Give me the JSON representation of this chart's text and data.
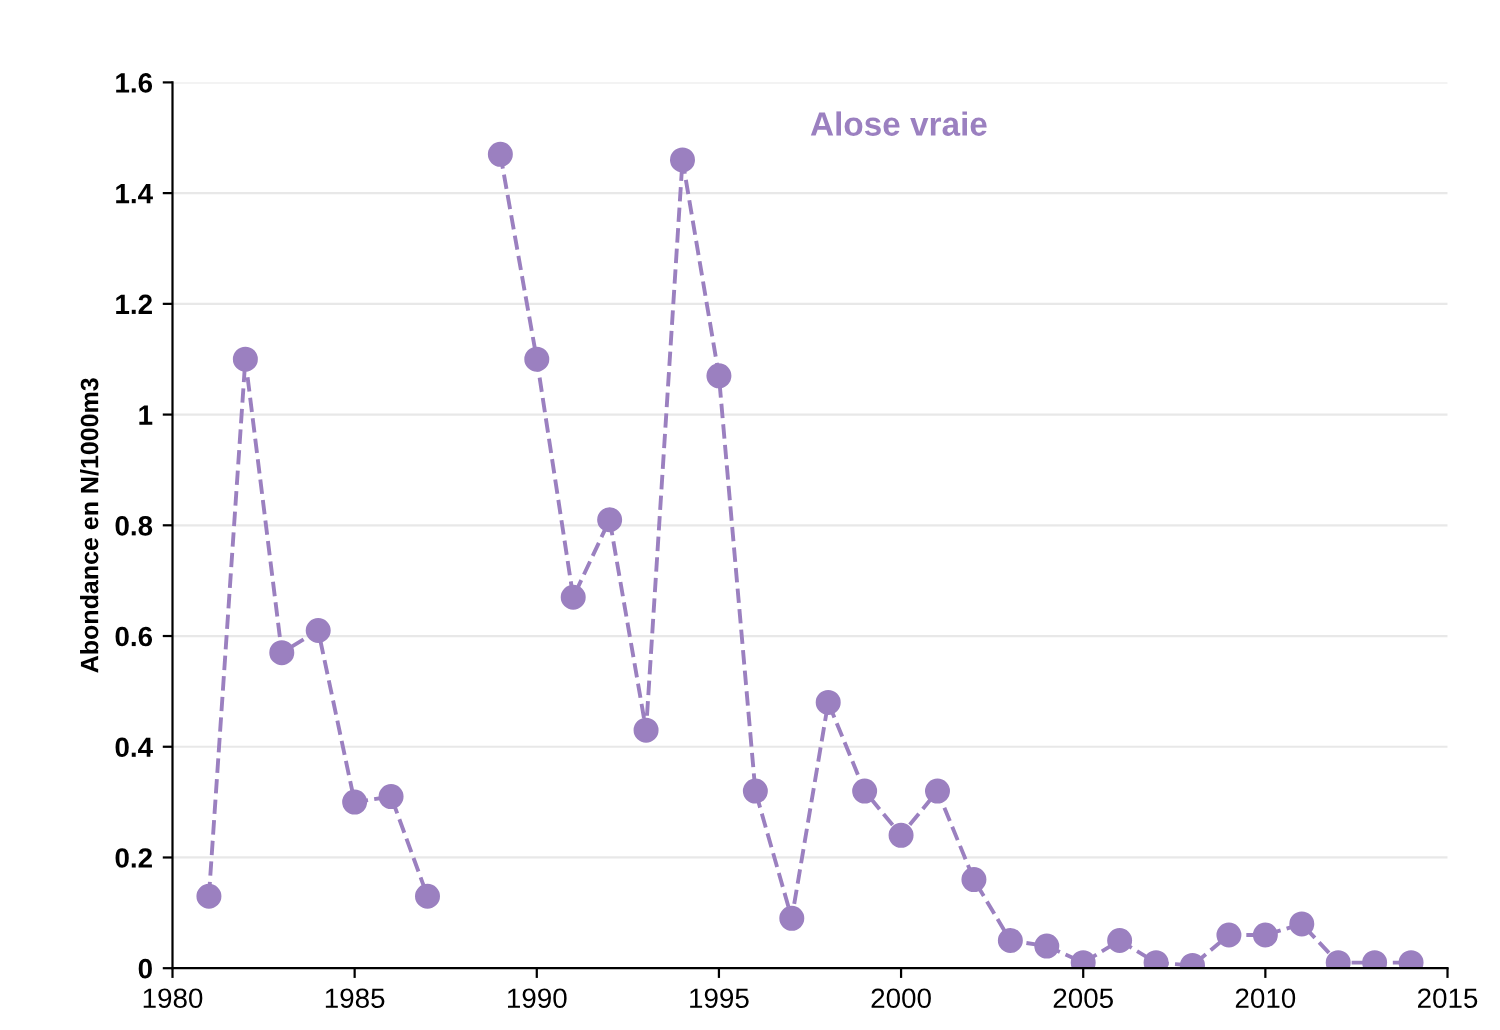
{
  "chart_data": {
    "type": "line",
    "title": "Alose vraie",
    "ylabel": "Abondance en N/1000m3",
    "x": [
      1981,
      1982,
      1983,
      1984,
      1985,
      1986,
      1987,
      1988,
      1989,
      1990,
      1991,
      1992,
      1993,
      1994,
      1995,
      1996,
      1997,
      1998,
      1999,
      2000,
      2001,
      2002,
      2003,
      2004,
      2005,
      2006,
      2007,
      2008,
      2009,
      2010,
      2011,
      2012,
      2013,
      2014
    ],
    "series": [
      {
        "color": "#9b80c0",
        "values": [
          0.13,
          1.1,
          0.57,
          0.61,
          0.3,
          0.31,
          0.13,
          null,
          1.47,
          1.1,
          0.67,
          0.81,
          0.43,
          1.46,
          1.07,
          0.32,
          0.09,
          0.48,
          0.32,
          0.24,
          0.32,
          0.16,
          0.05,
          0.04,
          0.01,
          0.05,
          0.01,
          0.005,
          0.06,
          0.06,
          0.08,
          0.01,
          0.01,
          0.01
        ]
      }
    ],
    "xlim": [
      1980,
      2015
    ],
    "xticks": [
      1980,
      1985,
      1990,
      1995,
      2000,
      2005,
      2010,
      2015
    ],
    "ylim": [
      0,
      1.6
    ],
    "yticks": [
      0,
      {
        "value": 0.2,
        "label": "0.2"
      },
      {
        "value": 0.4,
        "label": "0.4"
      },
      {
        "value": 0.6,
        "label": "0.6"
      },
      {
        "value": 0.8,
        "label": "0.8"
      },
      1,
      {
        "value": 1.2,
        "label": "1.2"
      },
      {
        "value": 1.4,
        "label": "1.4"
      },
      {
        "value": 1.6,
        "label": "1.6"
      }
    ],
    "grid": "y",
    "marker": "circle",
    "line_style": "dashed",
    "legend": false
  }
}
